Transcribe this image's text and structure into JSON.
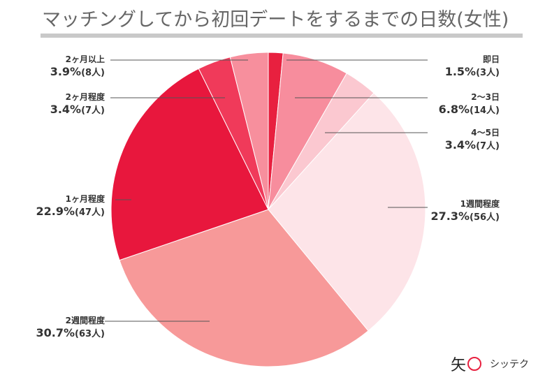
{
  "chart_data": {
    "type": "pie",
    "title": "マッチングしてから初回デートをするまでの日数(女性)",
    "start": "top",
    "direction": "clockwise",
    "slices": [
      {
        "label": "即日",
        "percent": 1.5,
        "count": "(3人)",
        "color": "#e8203f"
      },
      {
        "label": "2〜3日",
        "percent": 6.8,
        "count": "(14人)",
        "color": "#f78d9d"
      },
      {
        "label": "4〜5日",
        "percent": 3.4,
        "count": "(7人)",
        "color": "#fbc8d0"
      },
      {
        "label": "1週間程度",
        "percent": 27.3,
        "count": "(56人)",
        "color": "#fde4e8"
      },
      {
        "label": "2週間程度",
        "percent": 30.7,
        "count": "(63人)",
        "color": "#f79999"
      },
      {
        "label": "1ヶ月程度",
        "percent": 22.9,
        "count": "(47人)",
        "color": "#e8173d"
      },
      {
        "label": "2ヶ月程度",
        "percent": 3.4,
        "count": "(7人)",
        "color": "#f03a5a"
      },
      {
        "label": "2ヶ月以上",
        "percent": 3.9,
        "count": "(8人)",
        "color": "#f78f9d"
      }
    ]
  },
  "logo": {
    "mark": "矢",
    "text": "シッテク"
  }
}
